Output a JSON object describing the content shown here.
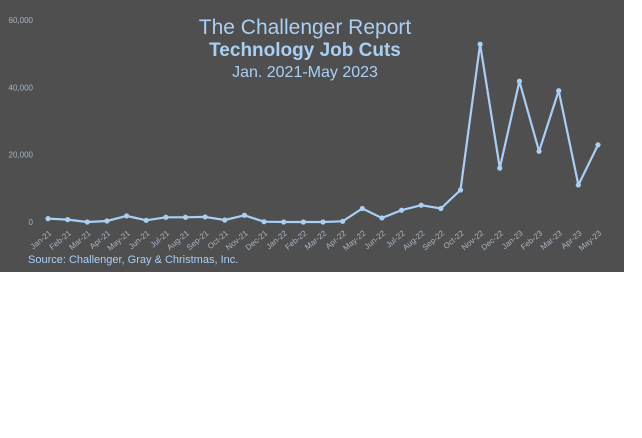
{
  "title_lines": {
    "line1": "The Challenger Report",
    "line2": "Technology Job Cuts",
    "line3": "Jan. 2021-May 2023"
  },
  "source": "Source: Challenger, Gray & Christmas, Inc.",
  "colors": {
    "panel": "#4f4f4f",
    "line": "#a9cff5",
    "tick_text": "#a6b4c2"
  },
  "chart_data": {
    "type": "line",
    "title": "The Challenger Report",
    "subtitle": "Technology Job Cuts",
    "period": "Jan. 2021-May 2023",
    "xlabel": "",
    "ylabel": "",
    "ylim": [
      0,
      60000
    ],
    "yticks": [
      "0",
      "20,000",
      "40,000",
      "60,000"
    ],
    "ytick_values": [
      0,
      20000,
      40000,
      60000
    ],
    "grid": false,
    "legend": "none",
    "categories": [
      "Jan-21",
      "Feb-21",
      "Mar-21",
      "Apr-21",
      "May-21",
      "Jun-21",
      "Jul-21",
      "Aug-21",
      "Sep-21",
      "Oct-21",
      "Nov-21",
      "Dec-21",
      "Jan-22",
      "Feb-22",
      "Mar-22",
      "Apr-22",
      "May-22",
      "Jun-22",
      "Jul-22",
      "Aug-22",
      "Sep-22",
      "Oct-22",
      "Nov-22",
      "Dec-22",
      "Jan-23",
      "Feb-23",
      "Mar-23",
      "Apr-23",
      "May-23"
    ],
    "series": [
      {
        "values": [
          1000,
          700,
          0,
          300,
          1800,
          500,
          1400,
          1400,
          1500,
          600,
          2000,
          100,
          0,
          0,
          0,
          200,
          4000,
          1200,
          3500,
          5000,
          4000,
          9500,
          52800,
          16000,
          41800,
          21000,
          39000,
          11000,
          22900
        ]
      }
    ]
  }
}
